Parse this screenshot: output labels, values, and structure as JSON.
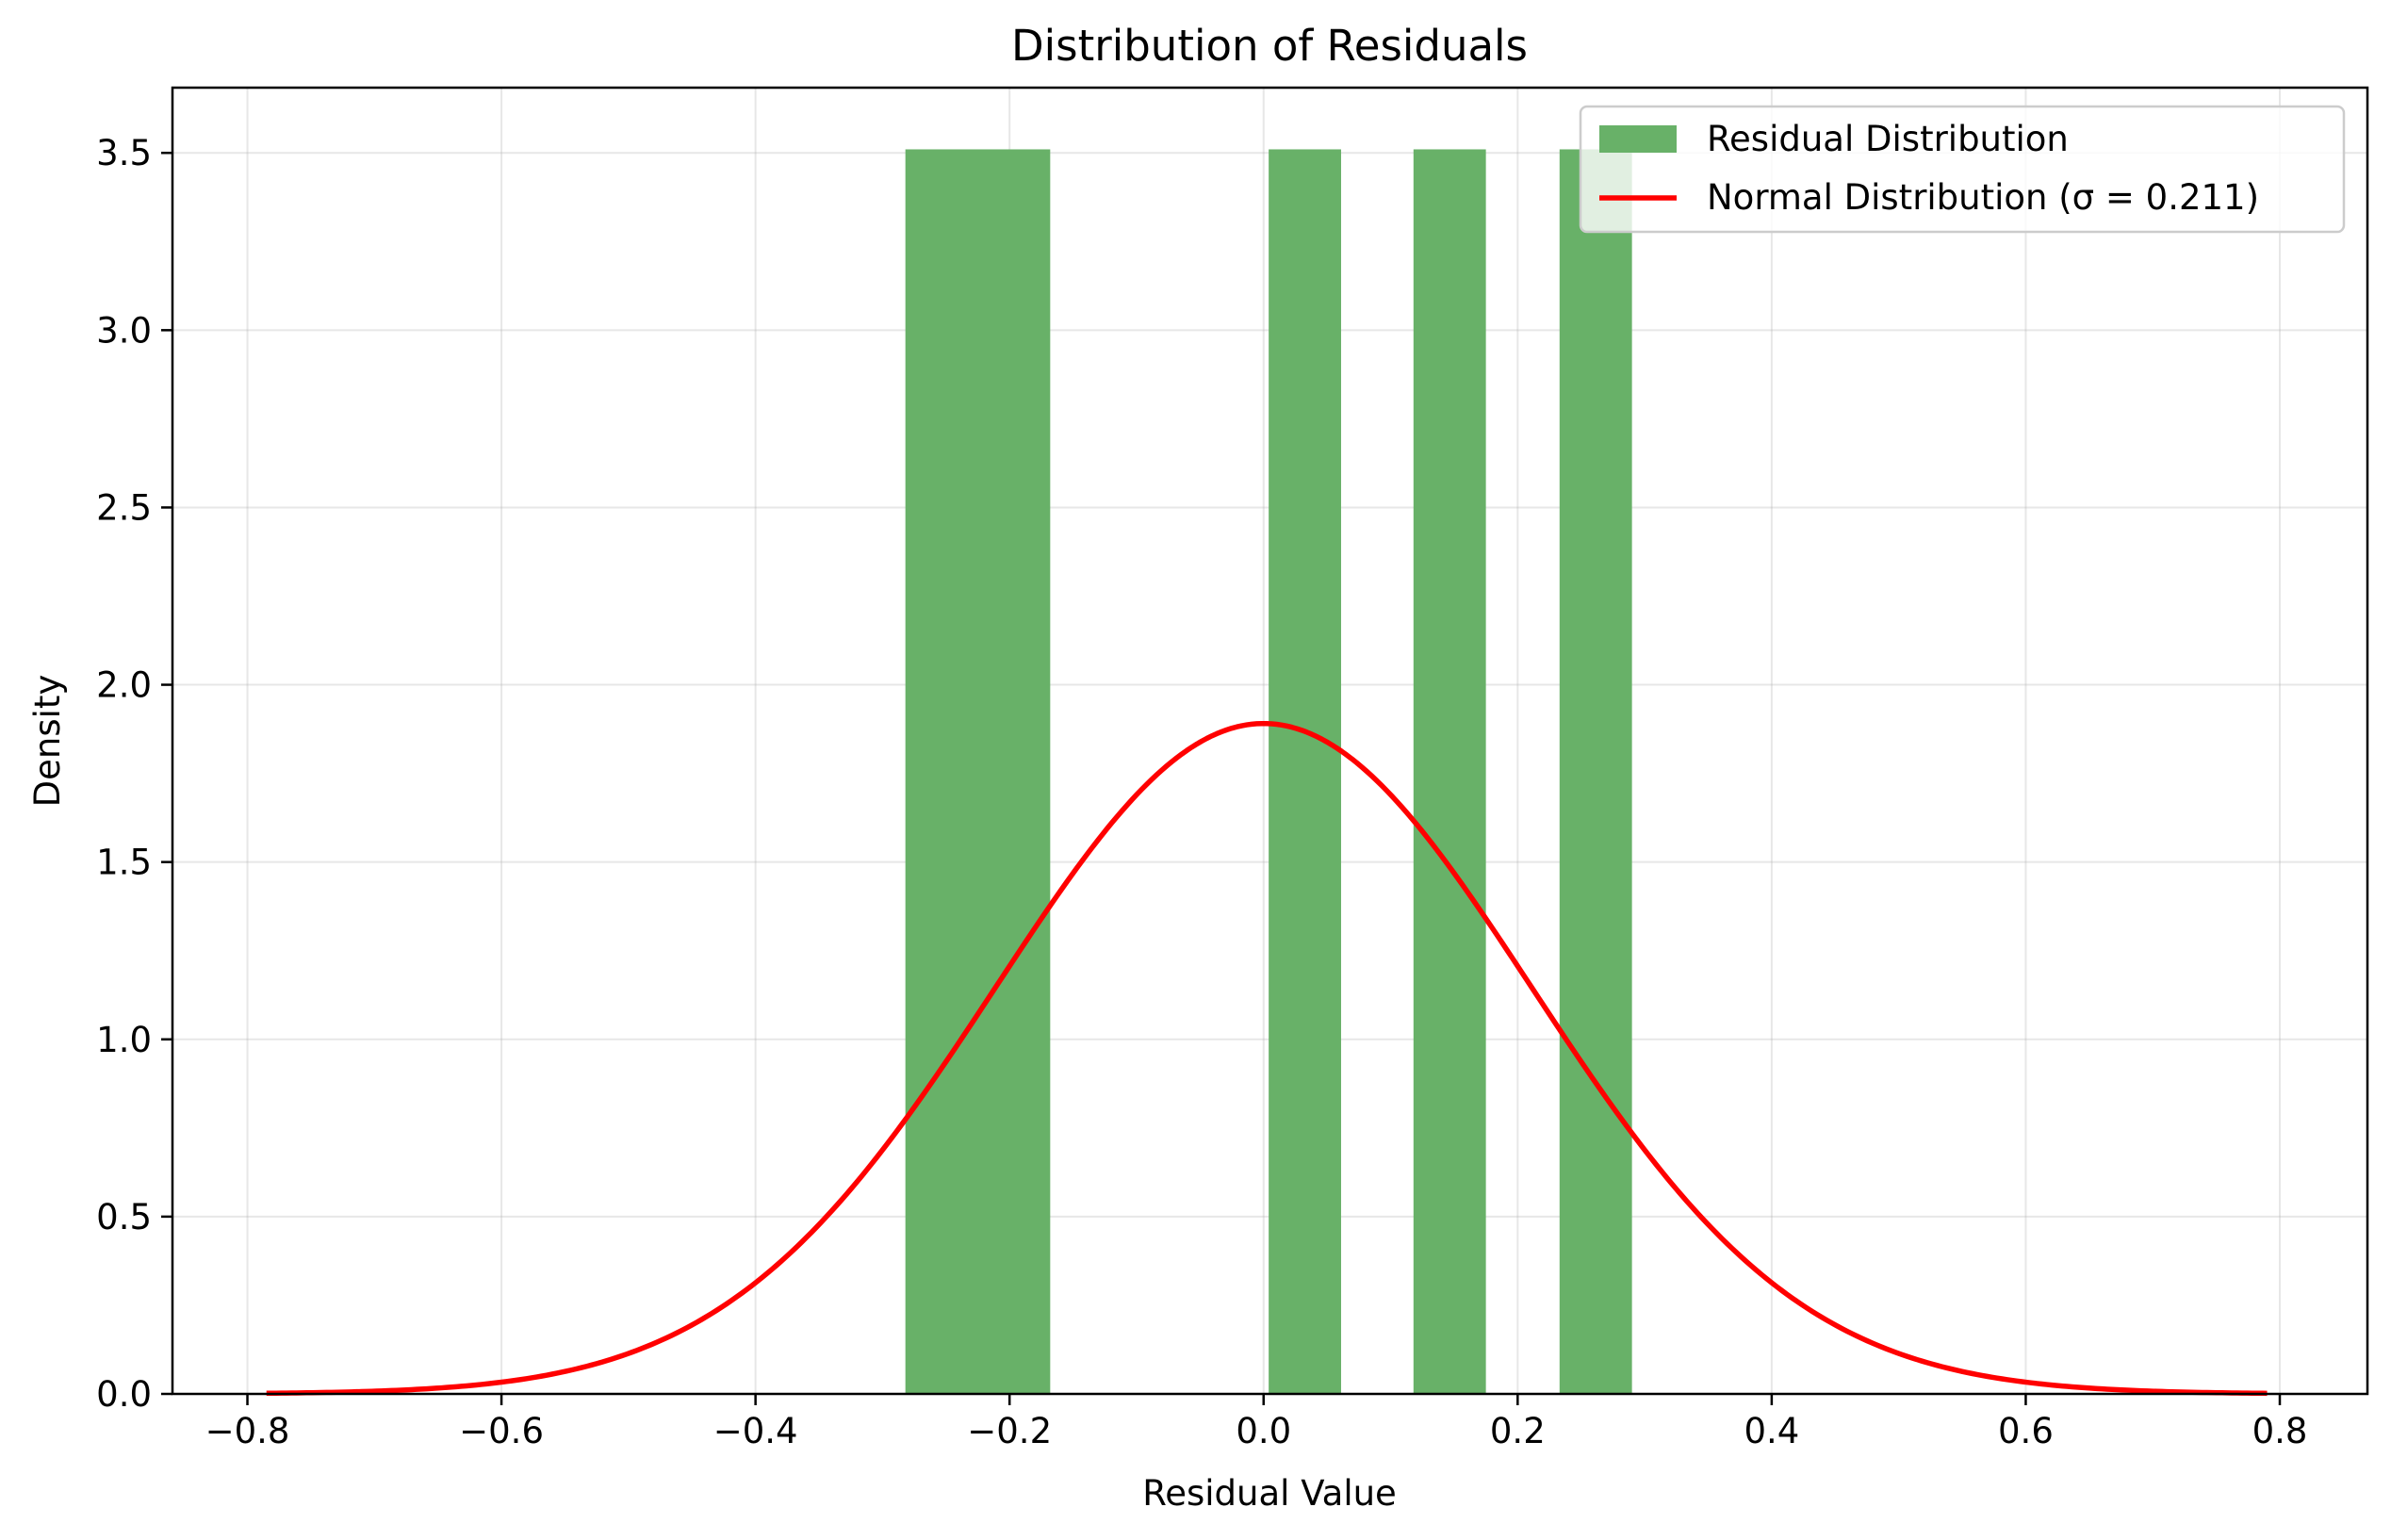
{
  "chart_data": {
    "type": "bar",
    "title": "Distribution of Residuals",
    "xlabel": "Residual Value",
    "ylabel": "Density",
    "xlim": [
      -0.859,
      0.869
    ],
    "ylim": [
      0,
      3.684
    ],
    "xticks": [
      -0.8,
      -0.6,
      -0.4,
      -0.2,
      0.0,
      0.2,
      0.4,
      0.6,
      0.8
    ],
    "xtick_labels": [
      "−0.8",
      "−0.6",
      "−0.4",
      "−0.2",
      "0.0",
      "0.2",
      "0.4",
      "0.6",
      "0.8"
    ],
    "yticks": [
      0.0,
      0.5,
      1.0,
      1.5,
      2.0,
      2.5,
      3.0,
      3.5
    ],
    "ytick_labels": [
      "0.0",
      "0.5",
      "1.0",
      "1.5",
      "2.0",
      "2.5",
      "3.0",
      "3.5"
    ],
    "grid": true,
    "legend_position": "top-right",
    "histogram": {
      "name": "Residual Distribution",
      "color": "#68b168",
      "bins": [
        {
          "x0": -0.282,
          "x1": -0.225,
          "density": 3.51
        },
        {
          "x0": -0.225,
          "x1": -0.168,
          "density": 3.51
        },
        {
          "x0": 0.004,
          "x1": 0.061,
          "density": 3.51
        },
        {
          "x0": 0.118,
          "x1": 0.175,
          "density": 3.51
        },
        {
          "x0": 0.233,
          "x1": 0.29,
          "density": 3.51
        }
      ]
    },
    "normal_curve": {
      "name": "Normal Distribution (σ = 0.211)",
      "color": "#ff0000",
      "mu": 0.0,
      "sigma": 0.211,
      "x_range": [
        -0.785,
        0.79
      ]
    }
  }
}
